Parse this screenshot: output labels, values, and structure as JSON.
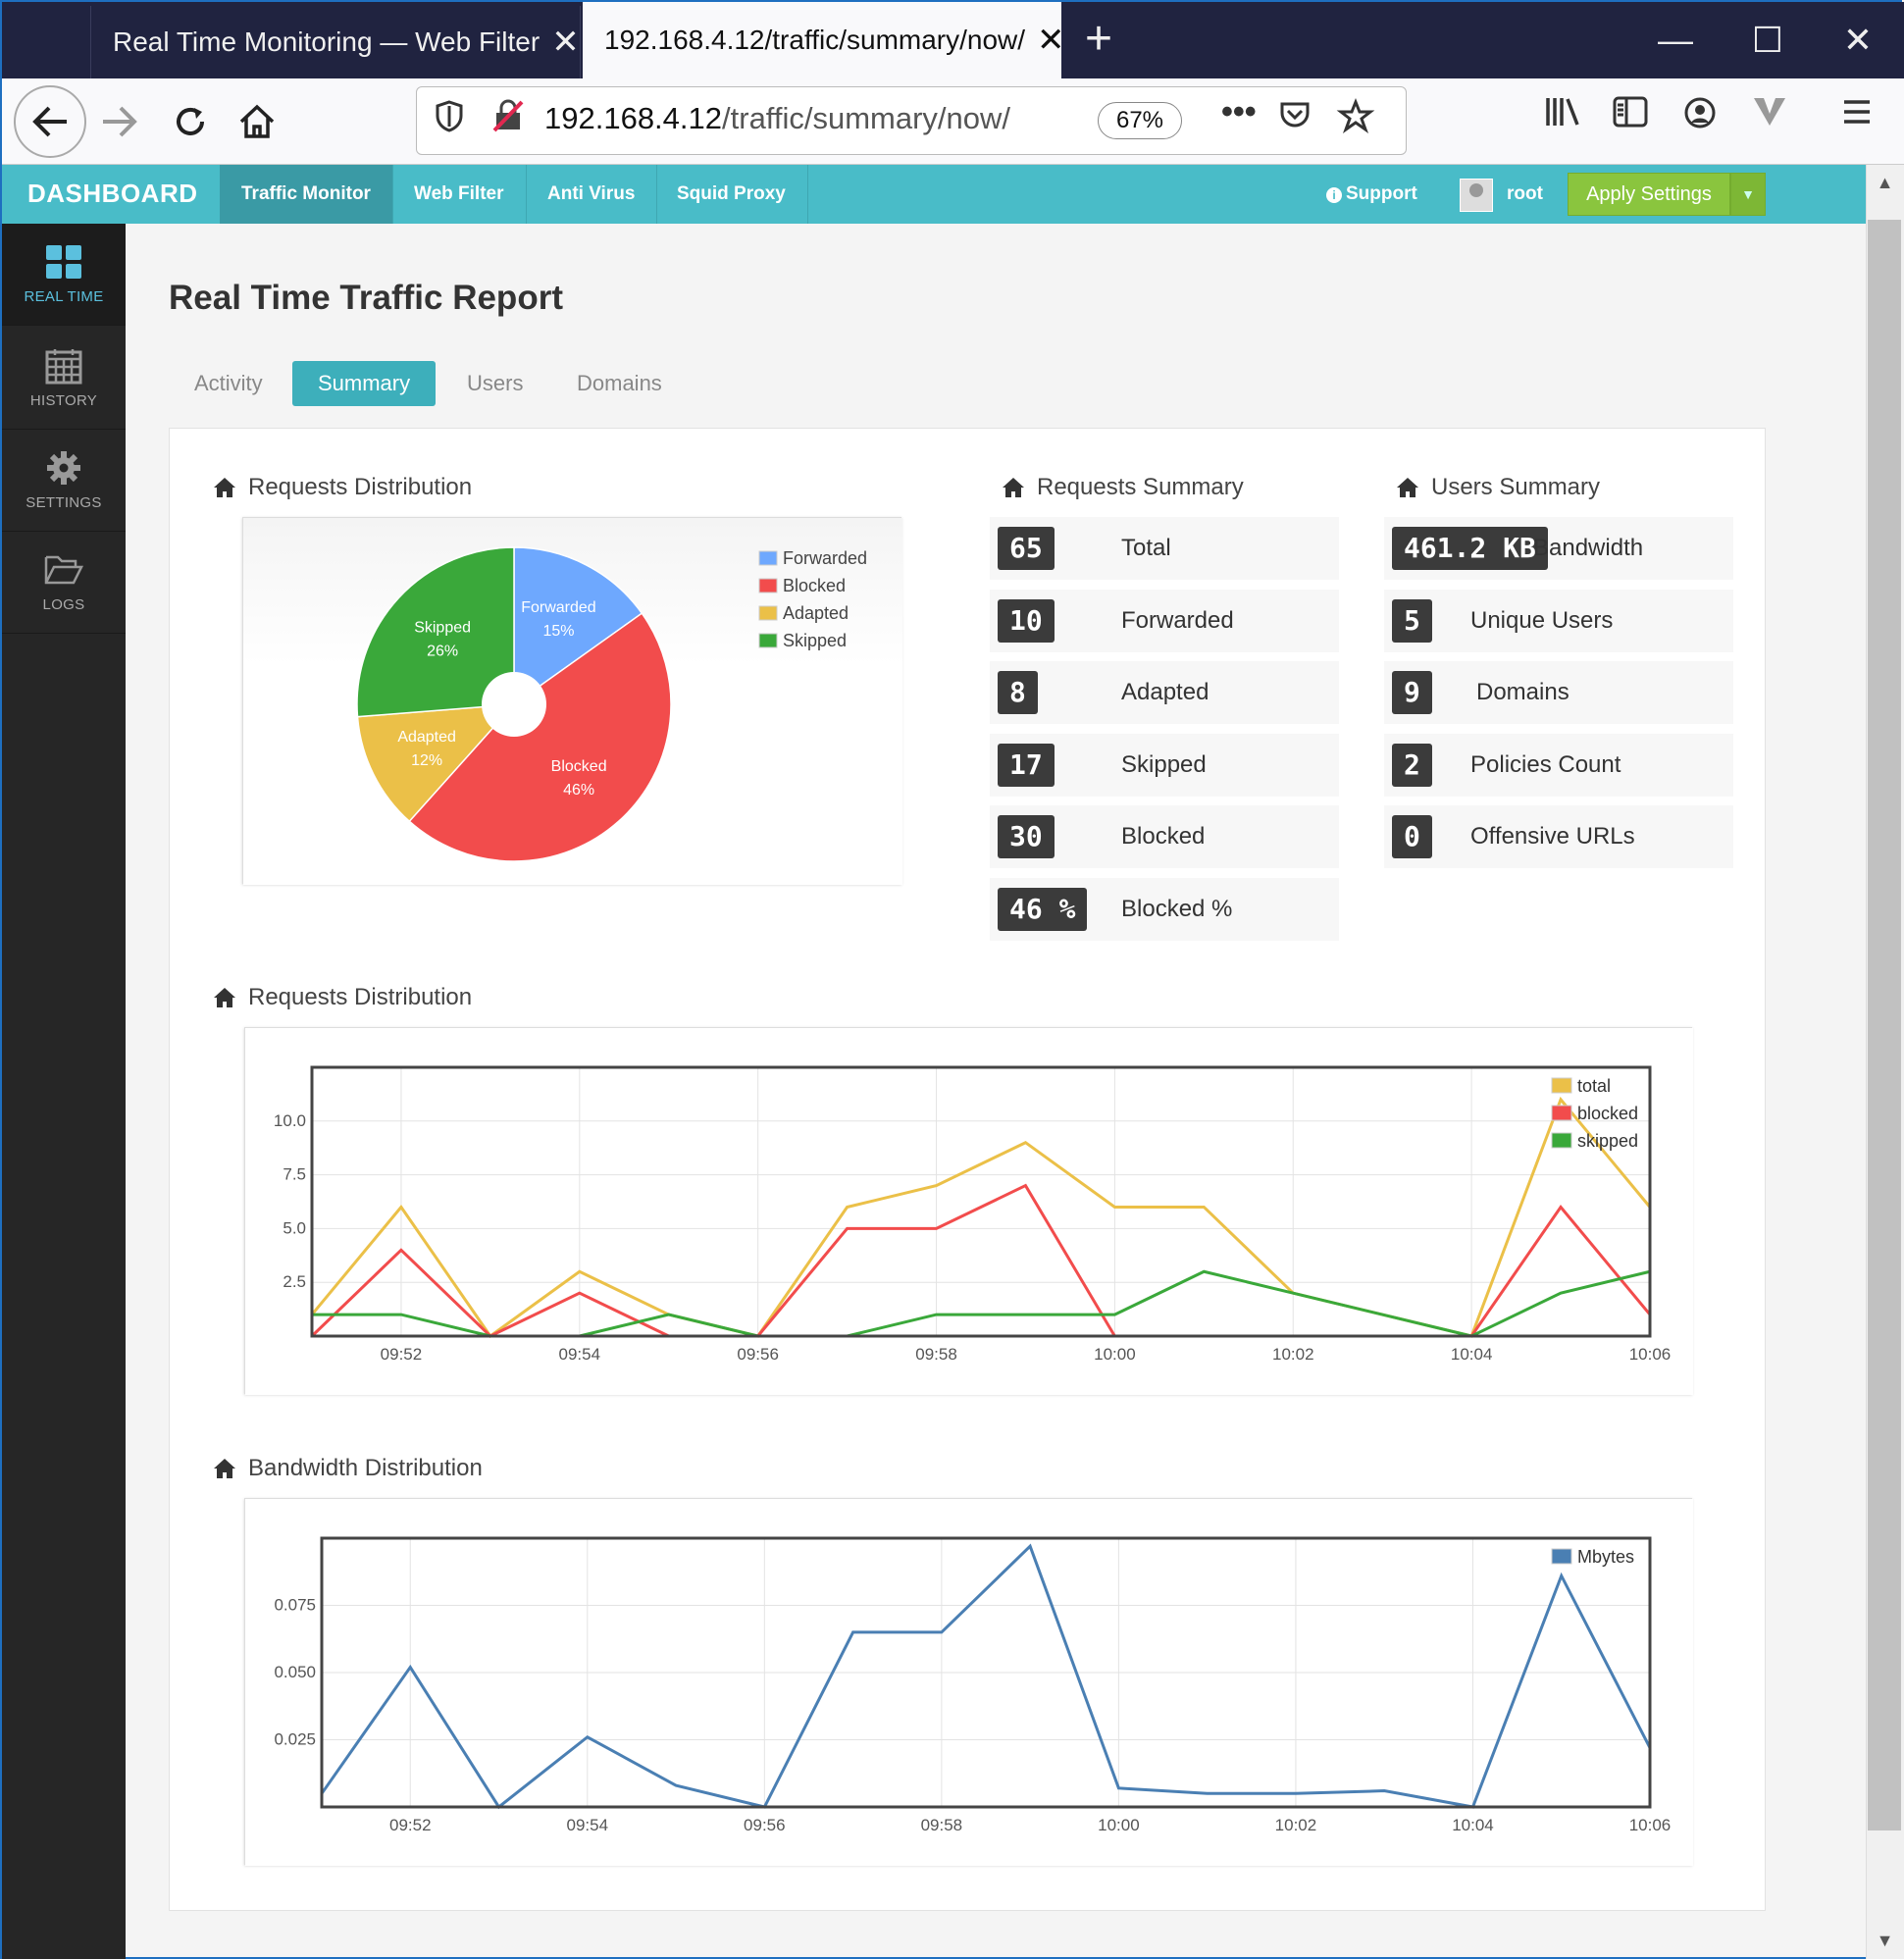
{
  "browser": {
    "tabs": [
      {
        "title": "Real Time Monitoring — Web Filter"
      },
      {
        "title": "192.168.4.12/traffic/summary/now/"
      }
    ],
    "url_host": "192.168.4.12",
    "url_path": "/traffic/summary/now/",
    "zoom": "67%"
  },
  "header": {
    "brand": "DASHBOARD",
    "nav": [
      "Traffic Monitor",
      "Web Filter",
      "Anti Virus",
      "Squid Proxy"
    ],
    "support": "Support",
    "user": "root",
    "apply": "Apply Settings"
  },
  "sidebar": {
    "items": [
      {
        "label": "REAL TIME",
        "icon": "grid-icon"
      },
      {
        "label": "HISTORY",
        "icon": "calendar-icon"
      },
      {
        "label": "SETTINGS",
        "icon": "gear-icon"
      },
      {
        "label": "LOGS",
        "icon": "folder-icon"
      }
    ]
  },
  "page": {
    "title": "Real Time Traffic Report",
    "tabs": [
      "Activity",
      "Summary",
      "Users",
      "Domains"
    ],
    "active_tab": "Summary"
  },
  "sections": {
    "pie_heading": "Requests Distribution",
    "requests_summary_heading": "Requests Summary",
    "users_summary_heading": "Users Summary",
    "line_heading": "Requests Distribution",
    "bandwidth_heading": "Bandwidth Distribution"
  },
  "requests_summary": [
    {
      "value": "65",
      "label": "Total"
    },
    {
      "value": "10",
      "label": "Forwarded"
    },
    {
      "value": "8",
      "label": "Adapted"
    },
    {
      "value": "17",
      "label": "Skipped"
    },
    {
      "value": "30",
      "label": "Blocked"
    },
    {
      "value": "46 %",
      "label": "Blocked %"
    }
  ],
  "users_summary": [
    {
      "value": "461.2 KB",
      "label": "Bandwidth"
    },
    {
      "value": "5",
      "label": "Unique Users"
    },
    {
      "value": "9",
      "label": "Domains"
    },
    {
      "value": "2",
      "label": "Policies Count"
    },
    {
      "value": "0",
      "label": "Offensive URLs"
    }
  ],
  "colors": {
    "teal": "#49bcc8",
    "forwarded": "#6ea8fe",
    "blocked": "#f24c4c",
    "adapted": "#ebc048",
    "skipped": "#3aa83a",
    "bandwidth": "#4a7fb3"
  },
  "chart_data": [
    {
      "type": "pie",
      "slices": [
        {
          "name": "Forwarded",
          "percent": 15,
          "label": "15%",
          "color": "#6ea8fe"
        },
        {
          "name": "Blocked",
          "percent": 46,
          "label": "46%",
          "color": "#f24c4c"
        },
        {
          "name": "Adapted",
          "percent": 12,
          "label": "12%",
          "color": "#ebc048"
        },
        {
          "name": "Skipped",
          "percent": 26,
          "label": "26%",
          "color": "#3aa83a"
        }
      ],
      "legend": "top-right"
    },
    {
      "type": "line",
      "x": [
        "09:51",
        "09:52",
        "09:53",
        "09:54",
        "09:55",
        "09:56",
        "09:57",
        "09:58",
        "09:59",
        "10:00",
        "10:01",
        "10:02",
        "10:03",
        "10:04",
        "10:05",
        "10:06"
      ],
      "x_ticks": [
        "09:52",
        "09:54",
        "09:56",
        "09:58",
        "10:00",
        "10:02",
        "10:04",
        "10:06"
      ],
      "y_ticks": [
        "2.5",
        "5.0",
        "7.5",
        "10.0"
      ],
      "ylim": [
        0,
        12.5
      ],
      "series": [
        {
          "name": "total",
          "color": "#ebc048",
          "values": [
            1,
            6,
            0,
            3,
            1,
            0,
            6,
            7,
            9,
            6,
            6,
            2,
            1,
            0,
            11,
            6
          ]
        },
        {
          "name": "blocked",
          "color": "#f24c4c",
          "values": [
            0,
            4,
            0,
            2,
            0,
            0,
            5,
            5,
            7,
            0,
            0,
            0,
            0,
            0,
            6,
            1
          ]
        },
        {
          "name": "skipped",
          "color": "#3aa83a",
          "values": [
            1,
            1,
            0,
            0,
            1,
            0,
            0,
            1,
            1,
            1,
            3,
            2,
            1,
            0,
            2,
            3
          ]
        }
      ],
      "legend": "top-right",
      "grid": true
    },
    {
      "type": "line",
      "x": [
        "09:51",
        "09:52",
        "09:53",
        "09:54",
        "09:55",
        "09:56",
        "09:57",
        "09:58",
        "09:59",
        "10:00",
        "10:01",
        "10:02",
        "10:03",
        "10:04",
        "10:05",
        "10:06"
      ],
      "x_ticks": [
        "09:52",
        "09:54",
        "09:56",
        "09:58",
        "10:00",
        "10:02",
        "10:04",
        "10:06"
      ],
      "y_ticks": [
        "0.025",
        "0.050",
        "0.075"
      ],
      "ylim": [
        0,
        0.1
      ],
      "series": [
        {
          "name": "Mbytes",
          "color": "#4a7fb3",
          "values": [
            0.005,
            0.052,
            0,
            0.026,
            0.008,
            0,
            0.065,
            0.065,
            0.097,
            0.007,
            0.005,
            0.005,
            0.006,
            0,
            0.086,
            0.022
          ]
        }
      ],
      "legend": "top-right",
      "grid": true
    }
  ]
}
